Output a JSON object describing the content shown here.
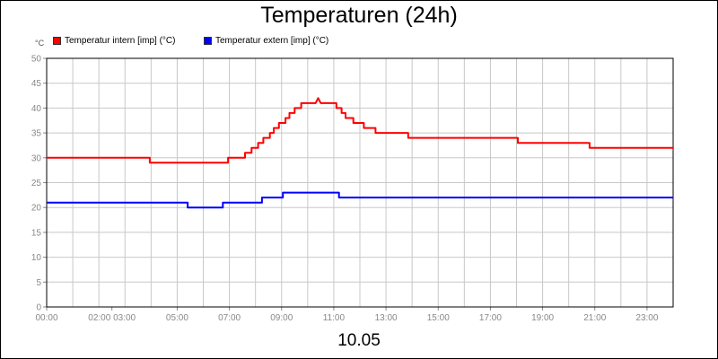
{
  "chart_data": {
    "type": "line",
    "title": "Temperaturen (24h)",
    "xlabel": "10.05",
    "ylabel": "°C",
    "ylim": [
      0,
      50
    ],
    "xlim": [
      0,
      24
    ],
    "y_ticks": [
      0,
      5,
      10,
      15,
      20,
      25,
      30,
      35,
      40,
      45,
      50
    ],
    "x_ticks": [
      {
        "x": 0,
        "label": "00:00"
      },
      {
        "x": 2.5,
        "label": "02:00 03:00"
      },
      {
        "x": 5,
        "label": "05:00"
      },
      {
        "x": 7,
        "label": "07:00"
      },
      {
        "x": 9,
        "label": "09:00"
      },
      {
        "x": 11,
        "label": "11:00"
      },
      {
        "x": 13,
        "label": "13:00"
      },
      {
        "x": 15,
        "label": "15:00"
      },
      {
        "x": 17,
        "label": "17:00"
      },
      {
        "x": 19,
        "label": "19:00"
      },
      {
        "x": 21,
        "label": "21:00"
      },
      {
        "x": 23,
        "label": "23:00"
      }
    ],
    "grid": true,
    "legend": "top-left",
    "series": [
      {
        "name": "Temperatur intern [imp] (°C)",
        "color": "#ff0000",
        "points": [
          [
            0,
            30
          ],
          [
            3.95,
            30
          ],
          [
            3.95,
            29
          ],
          [
            6.95,
            29
          ],
          [
            6.95,
            30
          ],
          [
            7.6,
            30
          ],
          [
            7.6,
            31
          ],
          [
            7.85,
            31
          ],
          [
            7.85,
            32
          ],
          [
            8.1,
            32
          ],
          [
            8.1,
            33
          ],
          [
            8.3,
            33
          ],
          [
            8.3,
            34
          ],
          [
            8.55,
            34
          ],
          [
            8.55,
            35
          ],
          [
            8.7,
            35
          ],
          [
            8.7,
            36
          ],
          [
            8.9,
            36
          ],
          [
            8.9,
            37
          ],
          [
            9.15,
            37
          ],
          [
            9.15,
            38
          ],
          [
            9.3,
            38
          ],
          [
            9.3,
            39
          ],
          [
            9.5,
            39
          ],
          [
            9.5,
            40
          ],
          [
            9.75,
            40
          ],
          [
            9.75,
            41
          ],
          [
            10.3,
            41
          ],
          [
            10.4,
            42
          ],
          [
            10.5,
            41
          ],
          [
            11.1,
            41
          ],
          [
            11.1,
            40
          ],
          [
            11.3,
            40
          ],
          [
            11.3,
            39
          ],
          [
            11.45,
            39
          ],
          [
            11.45,
            38
          ],
          [
            11.75,
            38
          ],
          [
            11.75,
            37
          ],
          [
            12.15,
            37
          ],
          [
            12.15,
            36
          ],
          [
            12.6,
            36
          ],
          [
            12.6,
            35
          ],
          [
            13.85,
            35
          ],
          [
            13.85,
            34
          ],
          [
            18.05,
            34
          ],
          [
            18.05,
            33
          ],
          [
            20.8,
            33
          ],
          [
            20.8,
            32
          ],
          [
            24,
            32
          ]
        ]
      },
      {
        "name": "Temperatur extern [imp] (°C)",
        "color": "#0000ff",
        "points": [
          [
            0,
            21
          ],
          [
            5.4,
            21
          ],
          [
            5.4,
            20
          ],
          [
            6.75,
            20
          ],
          [
            6.75,
            21
          ],
          [
            8.25,
            21
          ],
          [
            8.25,
            22
          ],
          [
            9.05,
            22
          ],
          [
            9.05,
            23
          ],
          [
            11.2,
            23
          ],
          [
            11.2,
            22
          ],
          [
            24,
            22
          ]
        ]
      }
    ]
  }
}
